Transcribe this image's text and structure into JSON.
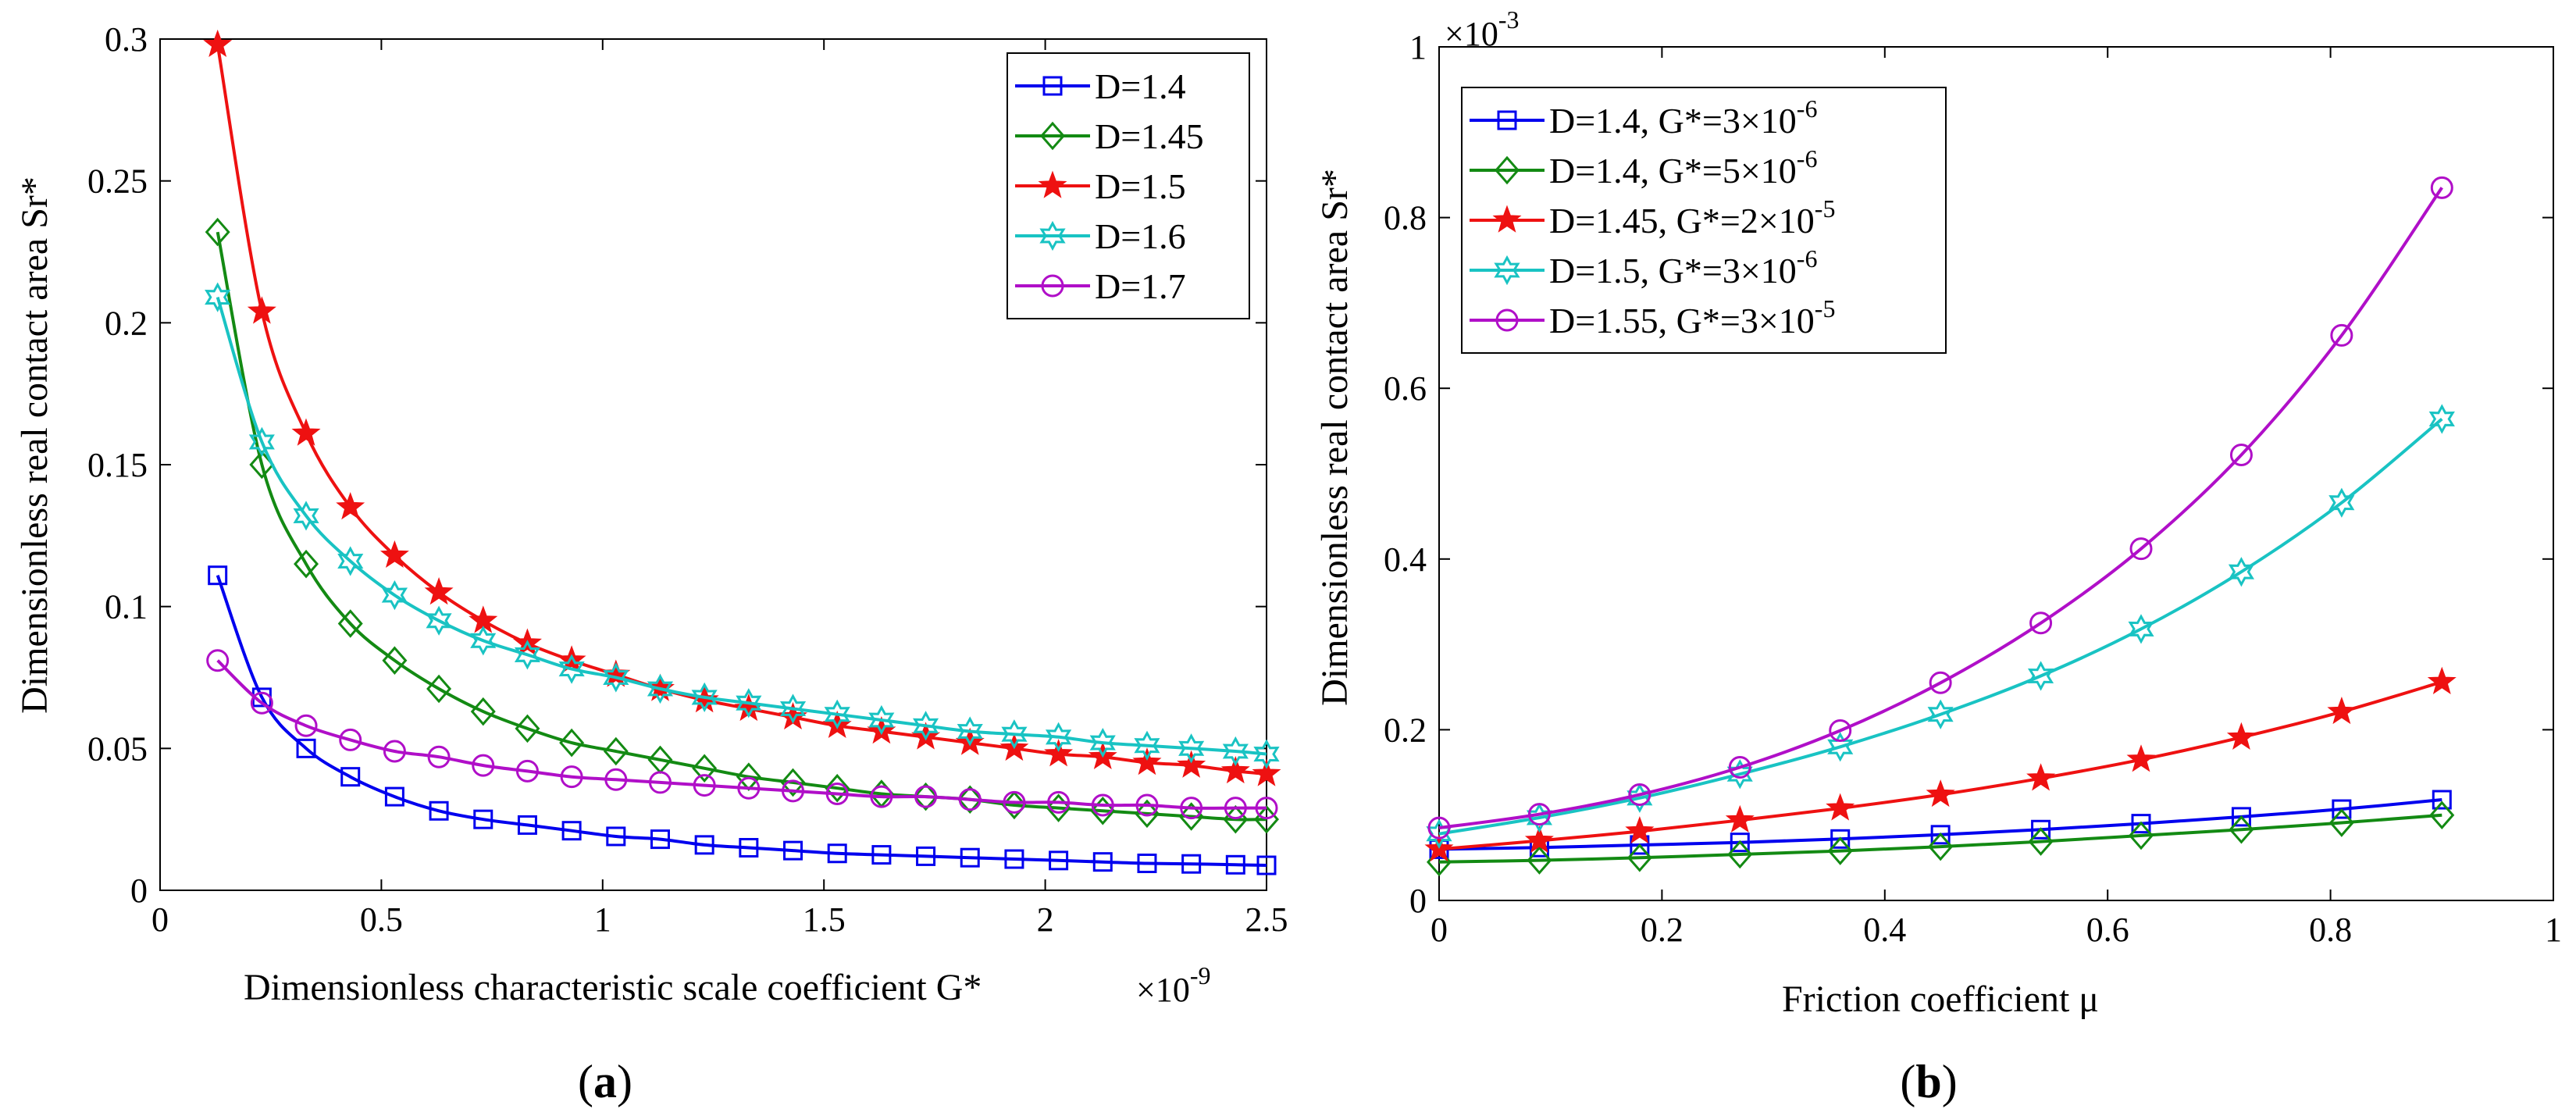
{
  "chart_data": [
    {
      "type": "line",
      "panel_label": "(a)",
      "panel_letter": "a",
      "title": "",
      "xlabel": "Dimensionless characteristic scale coefficient G*",
      "x_exponent_base": "×10",
      "x_exponent_power": "-9",
      "ylabel": "Dimensionless real contact area Sr*",
      "xlim": [
        0,
        2.5
      ],
      "ylim": [
        0,
        0.3
      ],
      "xticks": [
        0,
        0.5,
        1,
        1.5,
        2,
        2.5
      ],
      "xtick_labels": [
        "0",
        "0.5",
        "1",
        "1.5",
        "2",
        "2.5"
      ],
      "yticks": [
        0,
        0.05,
        0.1,
        0.15,
        0.2,
        0.25,
        0.3
      ],
      "ytick_labels": [
        "0",
        "0.05",
        "0.1",
        "0.15",
        "0.2",
        "0.25",
        "0.3"
      ],
      "legend_position": "top-right",
      "x": [
        0.13,
        0.23,
        0.33,
        0.43,
        0.53,
        0.63,
        0.73,
        0.83,
        0.93,
        1.03,
        1.13,
        1.23,
        1.33,
        1.43,
        1.53,
        1.63,
        1.73,
        1.83,
        1.93,
        2.03,
        2.13,
        2.23,
        2.33,
        2.43,
        2.5
      ],
      "series": [
        {
          "name": "D=1.4",
          "color": "#0000ee",
          "marker": "square",
          "values": [
            0.111,
            0.068,
            0.05,
            0.04,
            0.033,
            0.028,
            0.025,
            0.023,
            0.021,
            0.019,
            0.018,
            0.016,
            0.015,
            0.014,
            0.013,
            0.0125,
            0.012,
            0.0115,
            0.011,
            0.0105,
            0.01,
            0.0095,
            0.0093,
            0.009,
            0.0088
          ]
        },
        {
          "name": "D=1.45",
          "color": "#138a13",
          "marker": "diamond",
          "values": [
            0.232,
            0.15,
            0.115,
            0.094,
            0.081,
            0.071,
            0.063,
            0.057,
            0.052,
            0.049,
            0.046,
            0.043,
            0.04,
            0.038,
            0.036,
            0.034,
            0.033,
            0.032,
            0.03,
            0.029,
            0.028,
            0.027,
            0.026,
            0.025,
            0.025
          ]
        },
        {
          "name": "D=1.5",
          "color": "#ee1111",
          "marker": "star5",
          "values": [
            0.298,
            0.204,
            0.161,
            0.135,
            0.118,
            0.105,
            0.095,
            0.087,
            0.081,
            0.076,
            0.071,
            0.067,
            0.064,
            0.061,
            0.058,
            0.056,
            0.054,
            0.052,
            0.05,
            0.048,
            0.047,
            0.045,
            0.044,
            0.042,
            0.041
          ]
        },
        {
          "name": "D=1.6",
          "color": "#19c3c3",
          "marker": "star6",
          "values": [
            0.209,
            0.158,
            0.132,
            0.116,
            0.104,
            0.095,
            0.088,
            0.083,
            0.078,
            0.075,
            0.071,
            0.068,
            0.066,
            0.064,
            0.062,
            0.06,
            0.058,
            0.056,
            0.055,
            0.054,
            0.052,
            0.051,
            0.05,
            0.049,
            0.048
          ]
        },
        {
          "name": "D=1.7",
          "color": "#b00fc8",
          "marker": "circle",
          "values": [
            0.081,
            0.066,
            0.058,
            0.053,
            0.049,
            0.047,
            0.044,
            0.042,
            0.04,
            0.039,
            0.038,
            0.037,
            0.036,
            0.035,
            0.034,
            0.033,
            0.033,
            0.032,
            0.031,
            0.031,
            0.03,
            0.03,
            0.029,
            0.029,
            0.029
          ]
        }
      ]
    },
    {
      "type": "line",
      "panel_label": "(b)",
      "panel_letter": "b",
      "title": "",
      "xlabel": "Friction coefficient μ",
      "ylabel": "Dimensionless real contact area Sr*",
      "y_exponent_base": "×10",
      "y_exponent_power": "-3",
      "xlim": [
        0,
        1
      ],
      "ylim": [
        0,
        1
      ],
      "xticks": [
        0,
        0.2,
        0.4,
        0.6,
        0.8,
        1
      ],
      "xtick_labels": [
        "0",
        "0.2",
        "0.4",
        "0.6",
        "0.8",
        "1"
      ],
      "yticks": [
        0,
        0.2,
        0.4,
        0.6,
        0.8,
        1
      ],
      "ytick_labels": [
        "0",
        "0.2",
        "0.4",
        "0.6",
        "0.8",
        "1"
      ],
      "legend_position": "top-left",
      "x": [
        0,
        0.09,
        0.18,
        0.27,
        0.36,
        0.45,
        0.54,
        0.63,
        0.72,
        0.81,
        0.9
      ],
      "series": [
        {
          "name": "D=1.4, G*=3×10",
          "exp": "-6",
          "color": "#0000ee",
          "marker": "square",
          "values": [
            0.06,
            0.062,
            0.065,
            0.068,
            0.072,
            0.077,
            0.083,
            0.09,
            0.098,
            0.107,
            0.118
          ]
        },
        {
          "name": "D=1.4, G*=5×10",
          "exp": "-6",
          "color": "#138a13",
          "marker": "diamond",
          "values": [
            0.045,
            0.047,
            0.05,
            0.054,
            0.058,
            0.063,
            0.069,
            0.076,
            0.083,
            0.091,
            0.1
          ]
        },
        {
          "name": "D=1.45, G*=2×10",
          "exp": "-5",
          "color": "#ee1111",
          "marker": "star5",
          "values": [
            0.06,
            0.07,
            0.081,
            0.094,
            0.108,
            0.124,
            0.143,
            0.165,
            0.191,
            0.221,
            0.256
          ]
        },
        {
          "name": "D=1.5, G*=3×10",
          "exp": "-6",
          "color": "#19c3c3",
          "marker": "star6",
          "values": [
            0.078,
            0.097,
            0.12,
            0.148,
            0.18,
            0.218,
            0.263,
            0.318,
            0.385,
            0.466,
            0.564
          ]
        },
        {
          "name": "D=1.55, G*=3×10",
          "exp": "-5",
          "color": "#b00fc8",
          "marker": "circle",
          "values": [
            0.085,
            0.101,
            0.124,
            0.156,
            0.199,
            0.255,
            0.325,
            0.412,
            0.522,
            0.662,
            0.835
          ]
        }
      ]
    }
  ]
}
